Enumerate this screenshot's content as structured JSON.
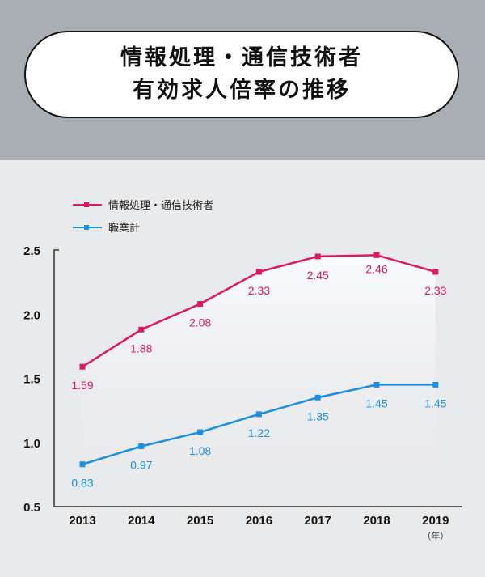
{
  "title": {
    "line1": "情報処理・通信技術者",
    "line2": "有効求人倍率の推移"
  },
  "chart_data": {
    "type": "line",
    "title": "情報処理・通信技術者 有効求人倍率の推移",
    "categories": [
      "2013",
      "2014",
      "2015",
      "2016",
      "2017",
      "2018",
      "2019"
    ],
    "xunit": "（年）",
    "ylim": [
      0.5,
      2.5
    ],
    "yticks": [
      "0.5",
      "1.0",
      "1.5",
      "2.0",
      "2.5"
    ],
    "legend_position": "top-left",
    "series": [
      {
        "name": "情報処理・通信技術者",
        "color": "#e0185e",
        "values": [
          1.59,
          1.88,
          2.08,
          2.33,
          2.45,
          2.46,
          2.33
        ],
        "labels": [
          "1.59",
          "1.88",
          "2.08",
          "2.33",
          "2.45",
          "2.46",
          "2.33"
        ]
      },
      {
        "name": "職業計",
        "color": "#1a8fe3",
        "values": [
          0.83,
          0.97,
          1.08,
          1.22,
          1.35,
          1.45,
          1.45
        ],
        "labels": [
          "0.83",
          "0.97",
          "1.08",
          "1.22",
          "1.35",
          "1.45",
          "1.45"
        ]
      }
    ]
  }
}
